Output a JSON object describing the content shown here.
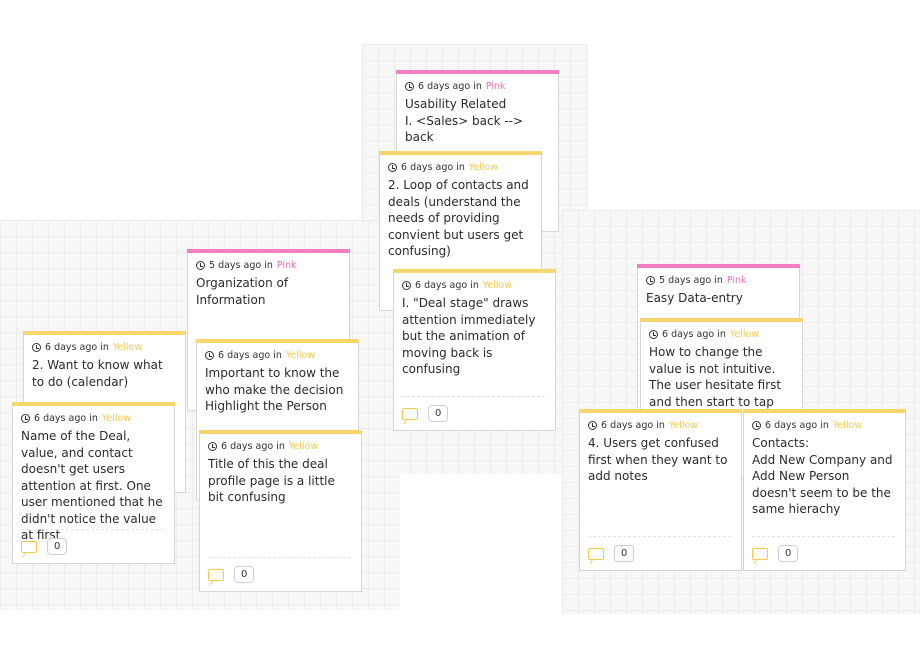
{
  "colors": {
    "yellow": "#f5d76e",
    "pink": "#f27fc3",
    "label_yellow": "#f2c94c",
    "label_pink": "#ec6fbe"
  },
  "cards": [
    {
      "time": "6 days ago in",
      "color": "Pink",
      "text": "Usability Related\nI. <Sales> back --> back",
      "comments": ""
    },
    {
      "time": "6 days ago in",
      "color": "Yellow",
      "text": "2. Loop of contacts and deals (understand the needs of providing convient but users get confusing)",
      "comments": ""
    },
    {
      "time": "6 days ago in",
      "color": "Yellow",
      "text": "I. \"Deal stage\" draws attention immediately but the animation of moving back is confusing",
      "comments": "0"
    },
    {
      "time": "5 days ago in",
      "color": "Pink",
      "text": "Organization of Information",
      "comments": ""
    },
    {
      "time": "6 days ago in",
      "color": "Yellow",
      "text": "2. Want to know what to do (calendar)",
      "comments": ""
    },
    {
      "time": "6 days ago in",
      "color": "Yellow",
      "text": "Important to know the who make the decision\nHighlight the Person",
      "comments": ""
    },
    {
      "time": "6 days ago in",
      "color": "Yellow",
      "text": "Name of the Deal, value, and contact doesn't get users attention at first. One user mentioned that he didn't notice the value at first",
      "comments": "0"
    },
    {
      "time": "6 days ago in",
      "color": "Yellow",
      "text": "Title of this the deal profile page is a little bit confusing",
      "comments": "0"
    },
    {
      "time": "5 days ago in",
      "color": "Pink",
      "text": "Easy Data-entry",
      "comments": ""
    },
    {
      "time": "6 days ago in",
      "color": "Yellow",
      "text": "How to change the value is not intuitive. The user hesitate first and then start to tap on edit",
      "comments": ""
    },
    {
      "time": "6 days ago in",
      "color": "Yellow",
      "text": "4. Users get confused first when they want to add notes",
      "comments": "0"
    },
    {
      "time": "6 days ago in",
      "color": "Yellow",
      "text": "Contacts:\nAdd New Company and Add New Person doesn't seem to be the same hierachy",
      "comments": "0"
    }
  ]
}
